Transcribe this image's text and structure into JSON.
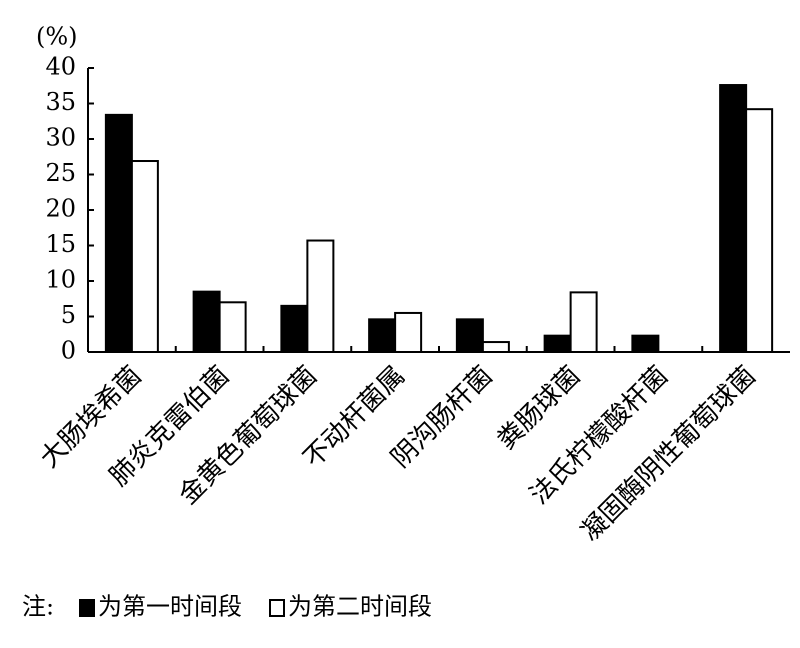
{
  "chart_data": {
    "type": "bar",
    "y_label": "(%)",
    "categories": [
      "大肠埃希菌",
      "肺炎克雷伯菌",
      "金黄色葡萄球菌",
      "不动杆菌属",
      "阴沟肠杆菌",
      "粪肠球菌",
      "法氏柠檬酸杆菌",
      "凝固酶阴性葡萄球菌"
    ],
    "series": [
      {
        "name": "为第一时间段",
        "color": "#000000",
        "values": [
          33.4,
          8.5,
          6.5,
          4.6,
          4.6,
          2.3,
          2.3,
          37.6
        ]
      },
      {
        "name": "为第二时间段",
        "color": "#ffffff",
        "values": [
          26.9,
          7.0,
          15.7,
          5.5,
          1.4,
          8.4,
          0,
          34.2
        ]
      }
    ],
    "ylim": [
      0,
      40
    ],
    "yticks": [
      0,
      5,
      10,
      15,
      20,
      25,
      30,
      35,
      40
    ],
    "legend_note": "注:",
    "legend_position": "bottom"
  }
}
